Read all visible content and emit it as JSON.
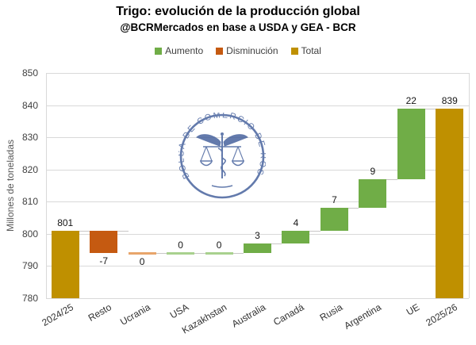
{
  "header": {
    "title": "Trigo: evolución de la producción global",
    "subtitle": "@BCRMercados en base a USDA y GEA - BCR"
  },
  "legend": {
    "items": [
      {
        "label": "Aumento",
        "color": "#70AD47"
      },
      {
        "label": "Disminución",
        "color": "#C55A11"
      },
      {
        "label": "Total",
        "color": "#BF9000"
      }
    ]
  },
  "watermark": {
    "text": "BOLSA DE COMERCIO DE ROSARIO",
    "color": "#3D5A98"
  },
  "chart_data": {
    "type": "bar",
    "subtype": "waterfall",
    "title": "Trigo: evolución de la producción global",
    "subtitle": "@BCRMercados en base a USDA y GEA - BCR",
    "categories": [
      "2024/25",
      "Resto",
      "Ucrania",
      "USA",
      "Kazakhstan",
      "Australia",
      "Canadá",
      "Rusia",
      "Argentina",
      "UE",
      "2025/26"
    ],
    "values": [
      801,
      -7,
      0,
      0,
      0,
      3,
      4,
      7,
      9,
      22,
      839
    ],
    "bar_types": [
      "total",
      "decrease",
      "decrease",
      "increase",
      "increase",
      "increase",
      "increase",
      "increase",
      "increase",
      "increase",
      "total"
    ],
    "labels": [
      "801",
      "-7",
      "0",
      "0",
      "0",
      "3",
      "4",
      "7",
      "9",
      "22",
      "839"
    ],
    "label_side": [
      "above",
      "below",
      "below",
      "above",
      "above",
      "above",
      "above",
      "above",
      "above",
      "above",
      "above"
    ],
    "segments": [
      {
        "from": 780,
        "to": 801
      },
      {
        "from": 794,
        "to": 801
      },
      {
        "from": 794,
        "to": 794
      },
      {
        "from": 794,
        "to": 794
      },
      {
        "from": 794,
        "to": 794
      },
      {
        "from": 794,
        "to": 797
      },
      {
        "from": 797,
        "to": 801
      },
      {
        "from": 801,
        "to": 808
      },
      {
        "from": 808,
        "to": 817
      },
      {
        "from": 817,
        "to": 839
      },
      {
        "from": 780,
        "to": 839
      }
    ],
    "xlabel": "",
    "ylabel": "Millones de toneladas",
    "ylim": [
      780,
      850
    ],
    "yticks": [
      780,
      790,
      800,
      810,
      820,
      830,
      840,
      850
    ],
    "grid": true,
    "legend_position": "top",
    "colors": {
      "increase": "#70AD47",
      "decrease": "#C55A11",
      "total": "#BF9000",
      "increase_zero": "#A9D18E",
      "decrease_zero": "#E8A56B",
      "gridline": "#D9D9D9",
      "connector": "#C8C6C6"
    }
  }
}
